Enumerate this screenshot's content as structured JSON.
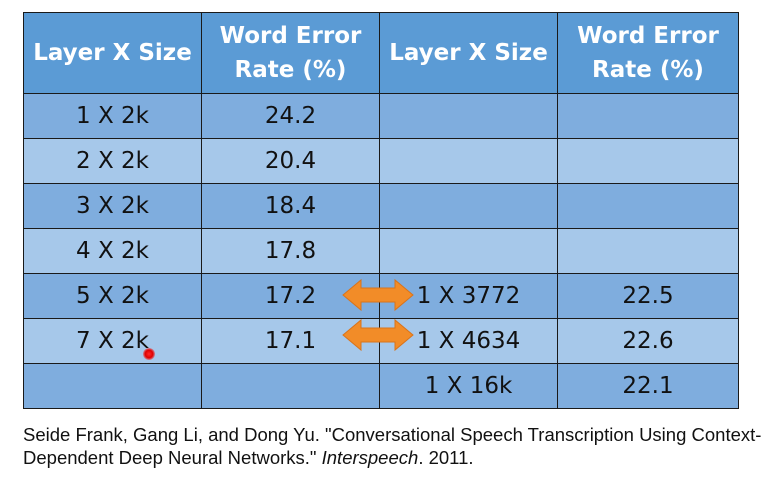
{
  "table": {
    "headers": [
      "Layer X Size",
      "Word Error Rate (%)",
      "Layer X Size",
      "Word Error Rate (%)"
    ],
    "rows": [
      [
        "1 X 2k",
        "24.2",
        "",
        ""
      ],
      [
        "2 X 2k",
        "20.4",
        "",
        ""
      ],
      [
        "3 X 2k",
        "18.4",
        "",
        ""
      ],
      [
        "4 X 2k",
        "17.8",
        "",
        ""
      ],
      [
        "5 X 2k",
        "17.2",
        "1 X 3772",
        "22.5"
      ],
      [
        "7 X 2k",
        "17.1",
        "1 X 4634",
        "22.6"
      ],
      [
        "",
        "",
        "1 X 16k",
        "22.1"
      ]
    ]
  },
  "citation": {
    "authors_title": "Seide Frank, Gang Li, and Dong Yu. \"Conversational Speech Transcription Using Context-Dependent Deep Neural Networks.\"",
    "venue": "Interspeech",
    "year": ". 2011."
  },
  "colors": {
    "header": "#5b9bd5",
    "row_dark": "#7fadde",
    "row_light": "#a6c8ea",
    "arrow": "#f28c28"
  },
  "icons": [
    "double-arrow-icon",
    "laser-pointer-icon"
  ]
}
